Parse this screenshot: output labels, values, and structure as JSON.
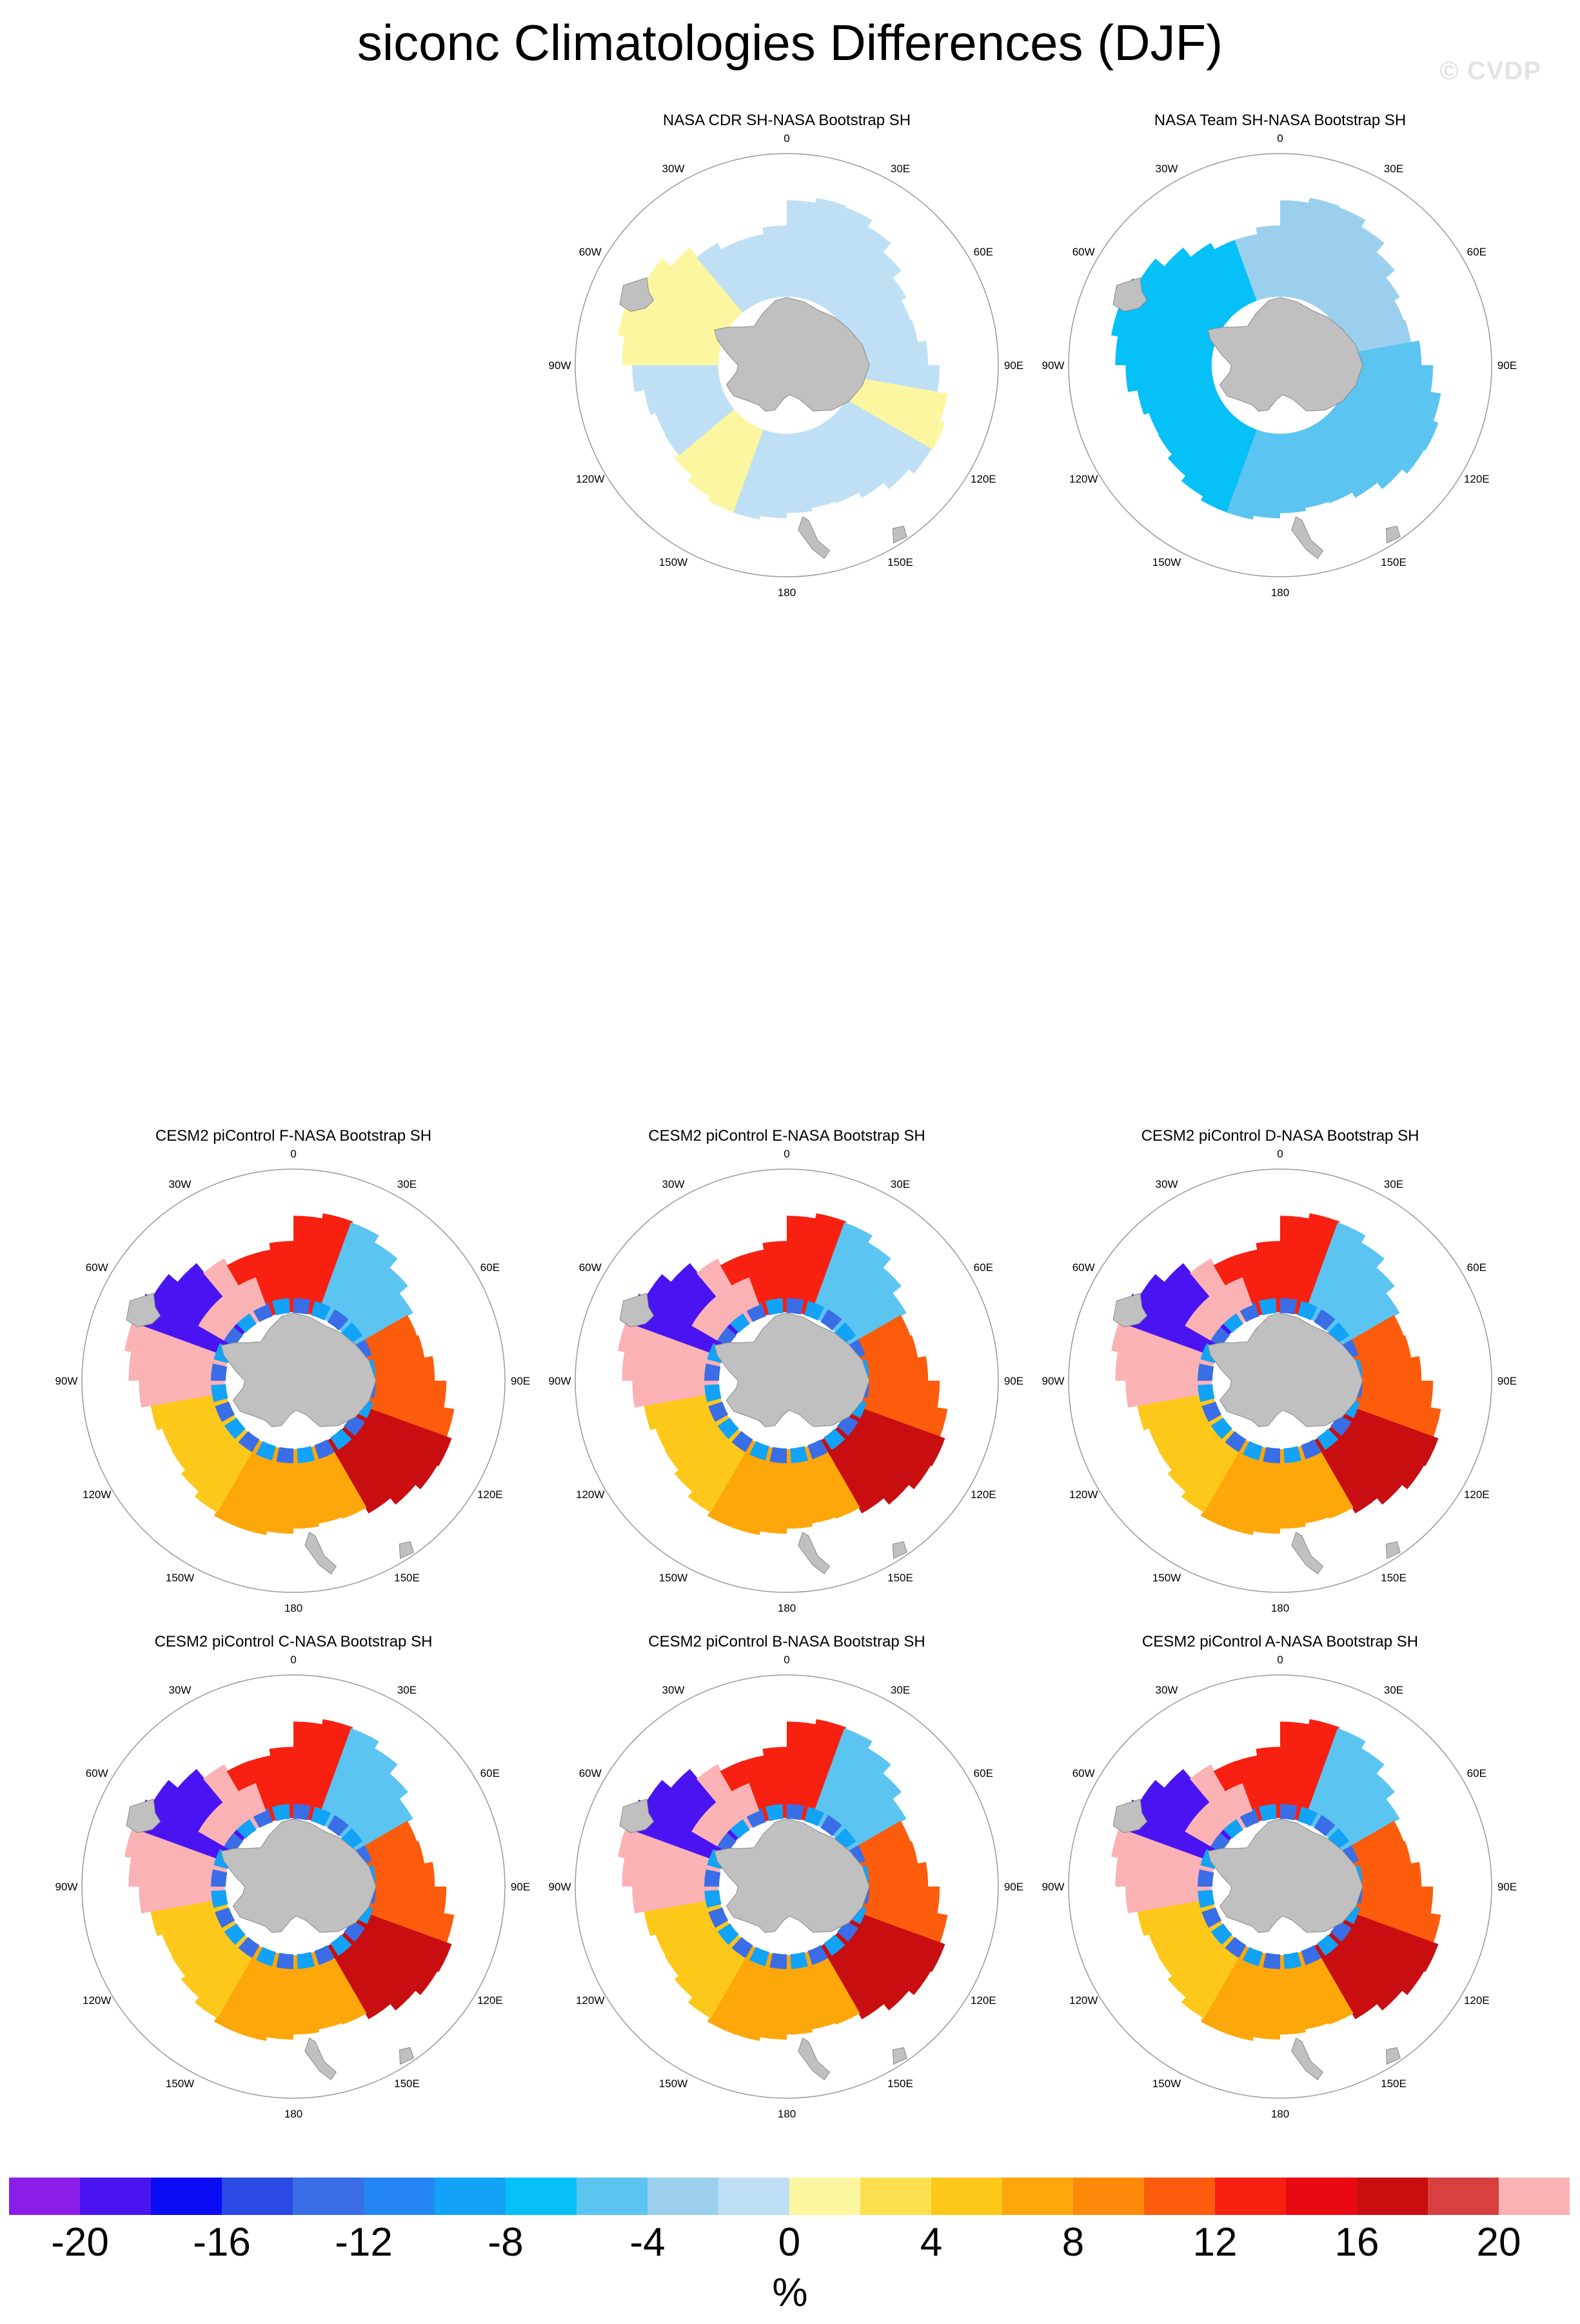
{
  "title": "siconc Climatologies Differences (DJF)",
  "watermark": "© CVDP",
  "lon_labels": [
    "0",
    "30E",
    "60E",
    "90E",
    "120E",
    "150E",
    "180",
    "150W",
    "120W",
    "90W",
    "60W",
    "30W"
  ],
  "panels": [
    {
      "title": "NASA CDR SH-NASA Bootstrap SH",
      "pattern": "cdr"
    },
    {
      "title": "NASA Team SH-NASA Bootstrap SH",
      "pattern": "team"
    },
    {
      "title": "CESM2 piControl F-NASA Bootstrap SH",
      "pattern": "model"
    },
    {
      "title": "CESM2 piControl E-NASA Bootstrap SH",
      "pattern": "model"
    },
    {
      "title": "CESM2 piControl D-NASA Bootstrap SH",
      "pattern": "model"
    },
    {
      "title": "CESM2 piControl C-NASA Bootstrap SH",
      "pattern": "model"
    },
    {
      "title": "CESM2 piControl B-NASA Bootstrap SH",
      "pattern": "model"
    },
    {
      "title": "CESM2 piControl A-NASA Bootstrap SH",
      "pattern": "model"
    }
  ],
  "colorbar": {
    "colors": [
      "#8a1ee8",
      "#4a14f2",
      "#0a0cf4",
      "#2a4ae4",
      "#3a6ee6",
      "#2486f2",
      "#12a2f8",
      "#06c0f8",
      "#5cc4f0",
      "#9ad0ee",
      "#bfe0f4",
      "#fdf6a0",
      "#fde050",
      "#fdc81a",
      "#fda70a",
      "#fd8a08",
      "#fc5c0c",
      "#f82010",
      "#e80a10",
      "#c80e10",
      "#d84040",
      "#fbb2b4"
    ],
    "tick_labels": [
      "-20",
      "-16",
      "-12",
      "-8",
      "-4",
      "0",
      "4",
      "8",
      "12",
      "16",
      "20"
    ],
    "units": "%"
  }
}
